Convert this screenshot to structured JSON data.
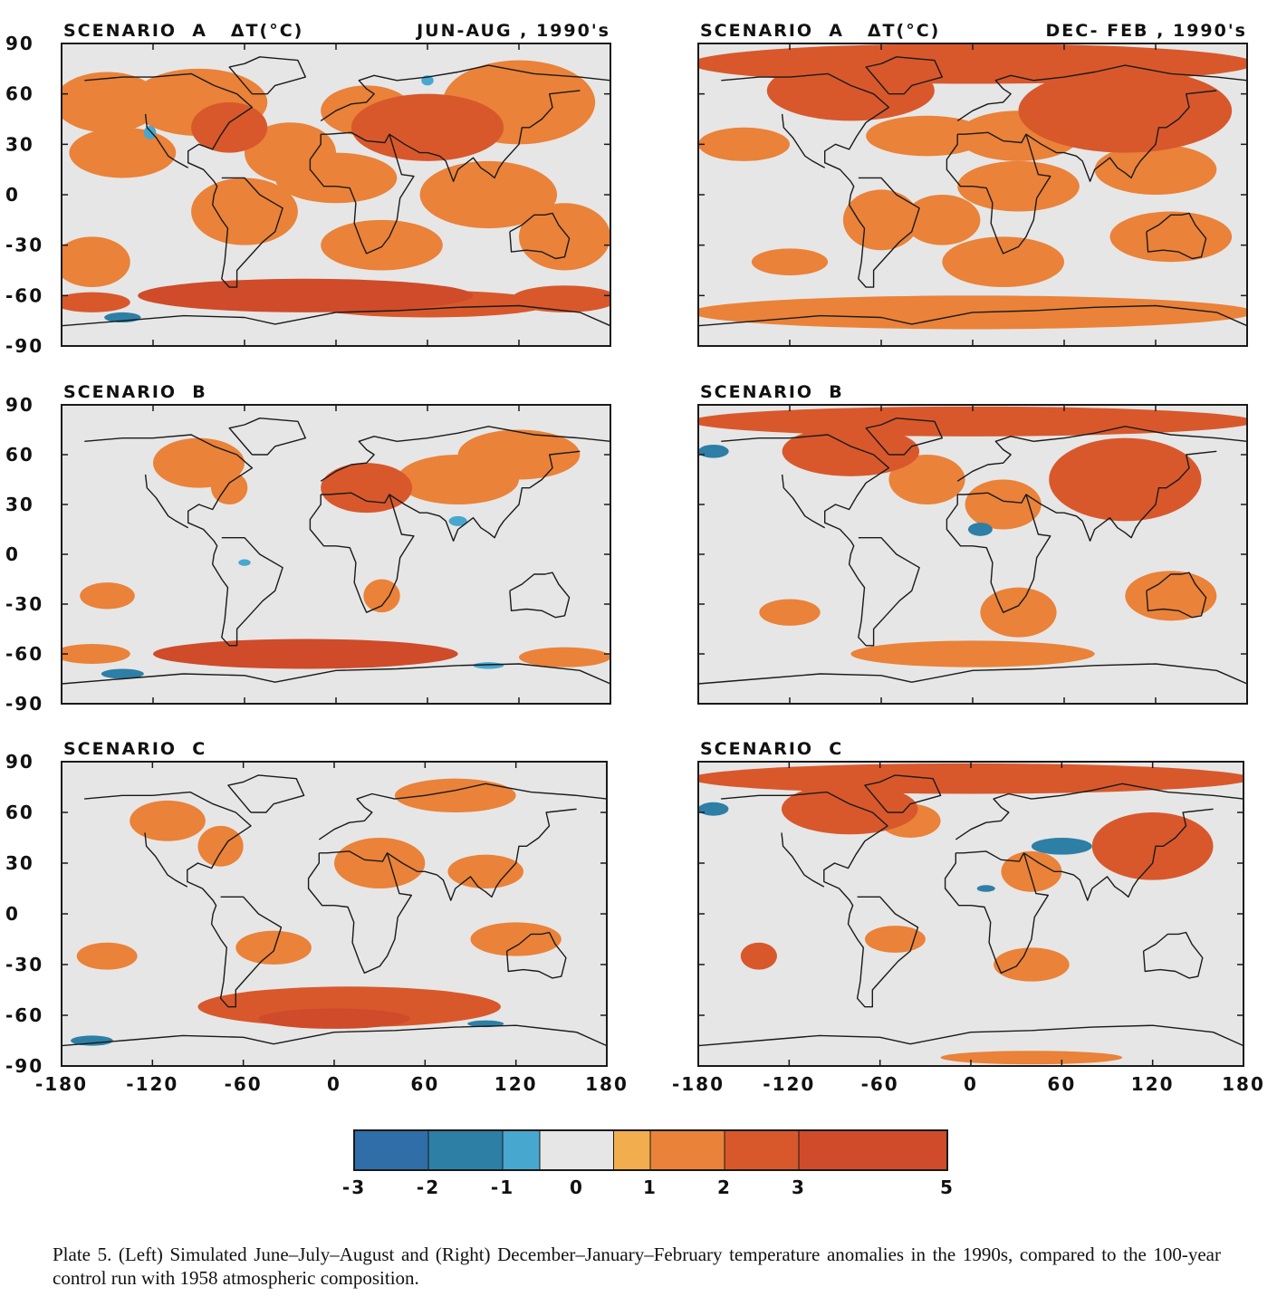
{
  "chart_data": {
    "type": "heatmap",
    "description_kind": "global lat-lon temperature anomaly maps",
    "x_ticks": [
      -180,
      -120,
      -60,
      0,
      60,
      120,
      180
    ],
    "x_tick_labels": [
      "-180",
      "-120",
      "-60",
      "0",
      "60",
      "120",
      "180"
    ],
    "y_ticks": [
      90,
      60,
      30,
      0,
      -30,
      -60,
      -90
    ],
    "y_tick_labels": [
      "90",
      "60",
      "30",
      "0",
      "-30",
      "-60",
      "-90"
    ],
    "xlim": [
      -180,
      180
    ],
    "ylim": [
      -90,
      90
    ],
    "grid": false,
    "colorbar": {
      "bounds": [
        -3,
        -2,
        -1,
        -0.5,
        0.5,
        1,
        2,
        3,
        5
      ],
      "tick_values": [
        -3,
        -2,
        -1,
        0,
        1,
        2,
        3,
        5
      ],
      "tick_labels": [
        "-3",
        "-2",
        "-1",
        "0",
        "1",
        "2",
        "3",
        "5"
      ],
      "colors": [
        "#2f6ea8",
        "#2d7fa6",
        "#48a7cf",
        "#e6e6e6",
        "#f2ad4e",
        "#ea8239",
        "#d8582c",
        "#cf4b2a"
      ]
    },
    "panels": [
      {
        "id": "A-JJA",
        "title_left": "SCENARIO  A   ΔT(°C)",
        "title_right": "JUN-AUG , 1990's",
        "regions": [
          {
            "lon": -150,
            "lat": 55,
            "rlon": 35,
            "rlat": 18,
            "v": 1.4
          },
          {
            "lon": -90,
            "lat": 55,
            "rlon": 45,
            "rlat": 20,
            "v": 1.6
          },
          {
            "lon": -70,
            "lat": 40,
            "rlon": 25,
            "rlat": 15,
            "v": 2.2
          },
          {
            "lon": -140,
            "lat": 25,
            "rlon": 35,
            "rlat": 15,
            "v": 1.2
          },
          {
            "lon": -30,
            "lat": 25,
            "rlon": 30,
            "rlat": 18,
            "v": 1.2
          },
          {
            "lon": 20,
            "lat": 50,
            "rlon": 30,
            "rlat": 15,
            "v": 1.6
          },
          {
            "lon": 60,
            "lat": 40,
            "rlon": 50,
            "rlat": 20,
            "v": 2.0
          },
          {
            "lon": 120,
            "lat": 55,
            "rlon": 50,
            "rlat": 25,
            "v": 1.5
          },
          {
            "lon": 0,
            "lat": 10,
            "rlon": 40,
            "rlat": 15,
            "v": 1.3
          },
          {
            "lon": -60,
            "lat": -10,
            "rlon": 35,
            "rlat": 20,
            "v": 1.3
          },
          {
            "lon": 100,
            "lat": 0,
            "rlon": 45,
            "rlat": 20,
            "v": 1.3
          },
          {
            "lon": 150,
            "lat": -25,
            "rlon": 30,
            "rlat": 20,
            "v": 1.2
          },
          {
            "lon": 30,
            "lat": -30,
            "rlon": 40,
            "rlat": 15,
            "v": 1.2
          },
          {
            "lon": -160,
            "lat": -40,
            "rlon": 25,
            "rlat": 15,
            "v": 1.2
          },
          {
            "lon": -20,
            "lat": -60,
            "rlon": 110,
            "rlat": 10,
            "v": 3.5
          },
          {
            "lon": -160,
            "lat": -64,
            "rlon": 25,
            "rlat": 6,
            "v": 2.8
          },
          {
            "lon": 150,
            "lat": -62,
            "rlon": 35,
            "rlat": 8,
            "v": 2.5
          },
          {
            "lon": 60,
            "lat": -65,
            "rlon": 80,
            "rlat": 8,
            "v": 2.3
          },
          {
            "lon": -140,
            "lat": -73,
            "rlon": 12,
            "rlat": 3,
            "v": -1.5
          },
          {
            "lon": 60,
            "lat": 68,
            "rlon": 4,
            "rlat": 3,
            "v": -1.0
          },
          {
            "lon": -122,
            "lat": 37,
            "rlon": 4,
            "rlat": 4,
            "v": -1.0
          }
        ]
      },
      {
        "id": "A-DJF",
        "title_left": "SCENARIO  A   ΔT(°C)",
        "title_right": "DEC- FEB , 1990's",
        "regions": [
          {
            "lon": 0,
            "lat": 78,
            "rlon": 185,
            "rlat": 12,
            "v": 2.5
          },
          {
            "lon": -80,
            "lat": 62,
            "rlon": 55,
            "rlat": 18,
            "v": 2.2
          },
          {
            "lon": 100,
            "lat": 50,
            "rlon": 70,
            "rlat": 25,
            "v": 2.2
          },
          {
            "lon": 30,
            "lat": 35,
            "rlon": 40,
            "rlat": 15,
            "v": 1.8
          },
          {
            "lon": -30,
            "lat": 35,
            "rlon": 40,
            "rlat": 12,
            "v": 1.2
          },
          {
            "lon": -150,
            "lat": 30,
            "rlon": 30,
            "rlat": 10,
            "v": 1.2
          },
          {
            "lon": 120,
            "lat": 15,
            "rlon": 40,
            "rlat": 15,
            "v": 1.3
          },
          {
            "lon": 30,
            "lat": 5,
            "rlon": 40,
            "rlat": 15,
            "v": 1.3
          },
          {
            "lon": -60,
            "lat": -15,
            "rlon": 25,
            "rlat": 18,
            "v": 1.3
          },
          {
            "lon": 130,
            "lat": -25,
            "rlon": 40,
            "rlat": 15,
            "v": 1.3
          },
          {
            "lon": 20,
            "lat": -40,
            "rlon": 40,
            "rlat": 15,
            "v": 1.2
          },
          {
            "lon": -120,
            "lat": -40,
            "rlon": 25,
            "rlat": 8,
            "v": 1.2
          },
          {
            "lon": 0,
            "lat": -70,
            "rlon": 185,
            "rlat": 10,
            "v": 1.2
          },
          {
            "lon": -20,
            "lat": -15,
            "rlon": 25,
            "rlat": 15,
            "v": 1.2
          }
        ]
      },
      {
        "id": "B-JJA",
        "title_left": "SCENARIO  B",
        "title_right": "",
        "regions": [
          {
            "lon": -90,
            "lat": 55,
            "rlon": 30,
            "rlat": 15,
            "v": 1.3
          },
          {
            "lon": -70,
            "lat": 40,
            "rlon": 12,
            "rlat": 10,
            "v": 1.6
          },
          {
            "lon": 20,
            "lat": 40,
            "rlon": 30,
            "rlat": 15,
            "v": 2.1
          },
          {
            "lon": 80,
            "lat": 45,
            "rlon": 40,
            "rlat": 15,
            "v": 1.3
          },
          {
            "lon": 120,
            "lat": 60,
            "rlon": 40,
            "rlat": 15,
            "v": 1.2
          },
          {
            "lon": 30,
            "lat": -25,
            "rlon": 12,
            "rlat": 10,
            "v": 1.2
          },
          {
            "lon": -150,
            "lat": -25,
            "rlon": 18,
            "rlat": 8,
            "v": 1.2
          },
          {
            "lon": -20,
            "lat": -60,
            "rlon": 100,
            "rlat": 9,
            "v": 3.2
          },
          {
            "lon": -160,
            "lat": -60,
            "rlon": 25,
            "rlat": 6,
            "v": 1.6
          },
          {
            "lon": 150,
            "lat": -62,
            "rlon": 30,
            "rlat": 6,
            "v": 1.6
          },
          {
            "lon": -140,
            "lat": -72,
            "rlon": 14,
            "rlat": 3,
            "v": -1.5
          },
          {
            "lon": 100,
            "lat": -67,
            "rlon": 10,
            "rlat": 2,
            "v": -1.0
          },
          {
            "lon": 80,
            "lat": 20,
            "rlon": 6,
            "rlat": 3,
            "v": -1.0
          },
          {
            "lon": -60,
            "lat": -5,
            "rlon": 4,
            "rlat": 2,
            "v": -1.0
          }
        ]
      },
      {
        "id": "B-DJF",
        "title_left": "SCENARIO  B",
        "title_right": "",
        "regions": [
          {
            "lon": 0,
            "lat": 80,
            "rlon": 185,
            "rlat": 9,
            "v": 2.7
          },
          {
            "lon": -80,
            "lat": 62,
            "rlon": 45,
            "rlat": 15,
            "v": 2.7
          },
          {
            "lon": 100,
            "lat": 45,
            "rlon": 50,
            "rlat": 25,
            "v": 2.0
          },
          {
            "lon": 20,
            "lat": 30,
            "rlon": 25,
            "rlat": 15,
            "v": 1.3
          },
          {
            "lon": -30,
            "lat": 45,
            "rlon": 25,
            "rlat": 15,
            "v": 1.2
          },
          {
            "lon": 130,
            "lat": -25,
            "rlon": 30,
            "rlat": 15,
            "v": 1.2
          },
          {
            "lon": 30,
            "lat": -35,
            "rlon": 25,
            "rlat": 15,
            "v": 1.2
          },
          {
            "lon": -120,
            "lat": -35,
            "rlon": 20,
            "rlat": 8,
            "v": 1.2
          },
          {
            "lon": 0,
            "lat": -60,
            "rlon": 80,
            "rlat": 8,
            "v": 1.2
          },
          {
            "lon": -170,
            "lat": 62,
            "rlon": 10,
            "rlat": 4,
            "v": -1.2
          },
          {
            "lon": 5,
            "lat": 15,
            "rlon": 8,
            "rlat": 4,
            "v": -1.5
          }
        ]
      },
      {
        "id": "C-JJA",
        "title_left": "SCENARIO  C",
        "title_right": "",
        "regions": [
          {
            "lon": -110,
            "lat": 55,
            "rlon": 25,
            "rlat": 12,
            "v": 1.3
          },
          {
            "lon": -75,
            "lat": 40,
            "rlon": 15,
            "rlat": 12,
            "v": 1.3
          },
          {
            "lon": 30,
            "lat": 30,
            "rlon": 30,
            "rlat": 15,
            "v": 1.3
          },
          {
            "lon": 80,
            "lat": 70,
            "rlon": 40,
            "rlat": 10,
            "v": 1.3
          },
          {
            "lon": 100,
            "lat": 25,
            "rlon": 25,
            "rlat": 10,
            "v": 1.2
          },
          {
            "lon": 120,
            "lat": -15,
            "rlon": 30,
            "rlat": 10,
            "v": 1.2
          },
          {
            "lon": -40,
            "lat": -20,
            "rlon": 25,
            "rlat": 10,
            "v": 1.2
          },
          {
            "lon": -150,
            "lat": -25,
            "rlon": 20,
            "rlat": 8,
            "v": 1.2
          },
          {
            "lon": 10,
            "lat": -55,
            "rlon": 100,
            "rlat": 12,
            "v": 2.2
          },
          {
            "lon": 0,
            "lat": -62,
            "rlon": 50,
            "rlat": 6,
            "v": 3.5
          },
          {
            "lon": -160,
            "lat": -75,
            "rlon": 14,
            "rlat": 3,
            "v": -1.5
          },
          {
            "lon": 100,
            "lat": -65,
            "rlon": 12,
            "rlat": 2,
            "v": -1.2
          }
        ]
      },
      {
        "id": "C-DJF",
        "title_left": "SCENARIO  C",
        "title_right": "",
        "regions": [
          {
            "lon": 0,
            "lat": 80,
            "rlon": 185,
            "rlat": 9,
            "v": 2.8
          },
          {
            "lon": -80,
            "lat": 62,
            "rlon": 45,
            "rlat": 15,
            "v": 2.8
          },
          {
            "lon": 120,
            "lat": 40,
            "rlon": 40,
            "rlat": 20,
            "v": 2.6
          },
          {
            "lon": 40,
            "lat": 25,
            "rlon": 20,
            "rlat": 12,
            "v": 1.3
          },
          {
            "lon": -40,
            "lat": 55,
            "rlon": 20,
            "rlat": 10,
            "v": 1.3
          },
          {
            "lon": -140,
            "lat": -25,
            "rlon": 12,
            "rlat": 8,
            "v": 2.2
          },
          {
            "lon": 40,
            "lat": -30,
            "rlon": 25,
            "rlat": 10,
            "v": 1.2
          },
          {
            "lon": -50,
            "lat": -15,
            "rlon": 20,
            "rlat": 8,
            "v": 1.2
          },
          {
            "lon": 40,
            "lat": -85,
            "rlon": 60,
            "rlat": 4,
            "v": 1.2
          },
          {
            "lon": 60,
            "lat": 40,
            "rlon": 20,
            "rlat": 5,
            "v": -1.5
          },
          {
            "lon": 10,
            "lat": 15,
            "rlon": 6,
            "rlat": 2,
            "v": -1.2
          },
          {
            "lon": -170,
            "lat": 62,
            "rlon": 10,
            "rlat": 4,
            "v": -1.2
          }
        ]
      }
    ]
  },
  "caption": {
    "label": "Plate 5.",
    "text": "(Left) Simulated June–July–August and (Right) December–January–February temperature anomalies in the 1990s, compared to the 100-year control run with 1958 atmospheric composition."
  }
}
